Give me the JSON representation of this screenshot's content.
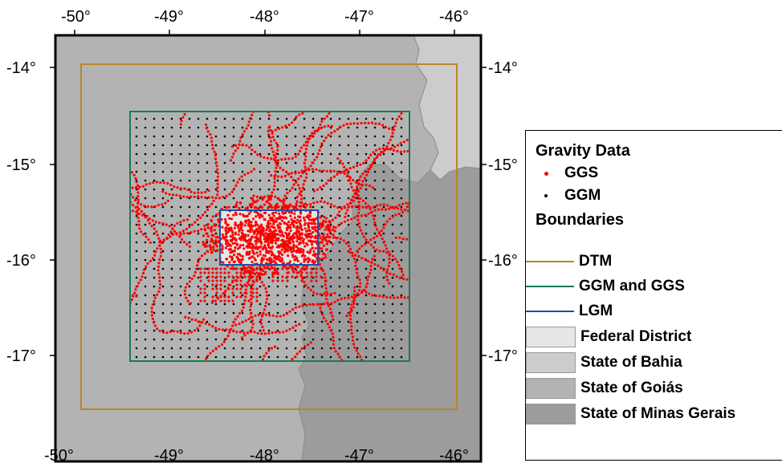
{
  "axes": {
    "x_ticks": [
      "-50°",
      "-49°",
      "-48°",
      "-47°",
      "-46°"
    ],
    "y_ticks": [
      "-14°",
      "-15°",
      "-16°",
      "-17°"
    ]
  },
  "colors": {
    "federal_district": "#e6e6e6",
    "bahia": "#cccccc",
    "goias": "#b3b3b3",
    "minas_gerais": "#9c9c9c",
    "dtm": "#b8862b",
    "ggm_ggs": "#1a7a55",
    "lgm": "#1e4fa8",
    "ggs_points": "#ff0000",
    "ggm_points": "#000000"
  },
  "legend": {
    "gravity_title": "Gravity Data",
    "ggs": "GGS",
    "ggm": "GGM",
    "boundaries_title": "Boundaries",
    "dtm": "DTM",
    "ggm_ggs": "GGM and GGS",
    "lgm": "LGM",
    "federal_district": "Federal District",
    "bahia": "State of Bahia",
    "goias": "State of Goiás",
    "minas_gerais": "State of Minas Gerais"
  }
}
